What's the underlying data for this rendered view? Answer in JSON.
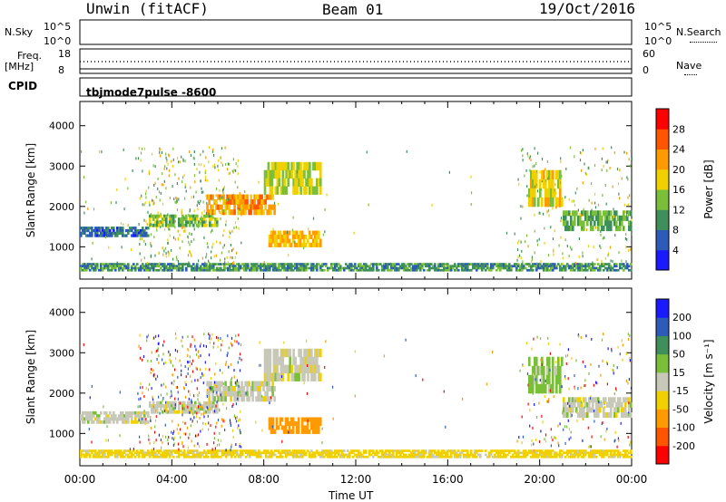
{
  "header": {
    "station": "Unwin (fitACF)",
    "beam": "Beam 01",
    "date": "19/Oct/2016"
  },
  "top_panels": {
    "nsky_label": "N.Sky",
    "nsky_ticks": [
      "10^5",
      "10^0"
    ],
    "nsearch_label": "N.Search",
    "freq_label_1": "Freq.",
    "freq_label_2": "[MHz]",
    "freq_ticks": [
      "18",
      "8"
    ],
    "nave_ticks": [
      "60",
      "0"
    ],
    "nave_label": "Nave",
    "cpid_label": "CPID",
    "cpid_value": "tbjmode7pulse  -8600"
  },
  "chart_data": [
    {
      "type": "heatmap",
      "name": "power",
      "ylabel": "Slant Range [km]",
      "yticks": [
        1000,
        2000,
        3000,
        4000
      ],
      "ylim": [
        200,
        4600
      ],
      "xlim": [
        0,
        24
      ],
      "colorbar": {
        "label": "Power [dB]",
        "ticks": [
          4,
          8,
          12,
          16,
          20,
          24,
          28
        ],
        "range": [
          0,
          32
        ],
        "colors": [
          "#1a1aff",
          "#2c5cb8",
          "#3f8f5a",
          "#7abf3a",
          "#f0d000",
          "#ff9a00",
          "#ff5500",
          "#ff0000"
        ]
      },
      "echo_bands": [
        {
          "t": [
            0.0,
            3.0
          ],
          "r": [
            1250,
            1500
          ],
          "level": 7
        },
        {
          "t": [
            3.0,
            6.0
          ],
          "r": [
            1500,
            1800
          ],
          "level": 14
        },
        {
          "t": [
            5.5,
            8.5
          ],
          "r": [
            1800,
            2300
          ],
          "level": 22
        },
        {
          "t": [
            8.0,
            10.5
          ],
          "r": [
            2300,
            3100
          ],
          "level": 16
        },
        {
          "t": [
            8.2,
            10.5
          ],
          "r": [
            1000,
            1400
          ],
          "level": 20
        },
        {
          "t": [
            19.5,
            21.0
          ],
          "r": [
            2000,
            2900
          ],
          "level": 18
        },
        {
          "t": [
            21.0,
            24.0
          ],
          "r": [
            1400,
            1900
          ],
          "level": 12
        },
        {
          "t": [
            0.0,
            24.0
          ],
          "r": [
            400,
            600
          ],
          "level": 10
        }
      ]
    },
    {
      "type": "heatmap",
      "name": "velocity",
      "ylabel": "Slant Range [km]",
      "yticks": [
        1000,
        2000,
        3000,
        4000
      ],
      "ylim": [
        200,
        4600
      ],
      "xlim": [
        0,
        24
      ],
      "colorbar": {
        "label": "Velocity [m s⁻¹]",
        "ticks": [
          "200",
          "100",
          "50",
          "15",
          "-15",
          "-50",
          "-100",
          "-200"
        ],
        "colors": [
          "#1a1aff",
          "#2c5cb8",
          "#3f8f5a",
          "#7abf3a",
          "#c8c8b8",
          "#f0d000",
          "#ff9a00",
          "#ff5500",
          "#ff0000"
        ]
      },
      "echo_bands": [
        {
          "t": [
            0.0,
            3.0
          ],
          "r": [
            1250,
            1550
          ],
          "level": 0
        },
        {
          "t": [
            3.0,
            6.0
          ],
          "r": [
            1500,
            1800
          ],
          "level": 0
        },
        {
          "t": [
            5.5,
            8.5
          ],
          "r": [
            1800,
            2300
          ],
          "level": 0
        },
        {
          "t": [
            8.0,
            10.5
          ],
          "r": [
            2300,
            3100
          ],
          "level": 0
        },
        {
          "t": [
            8.2,
            10.5
          ],
          "r": [
            1000,
            1400
          ],
          "level": -80
        },
        {
          "t": [
            19.5,
            21.0
          ],
          "r": [
            2000,
            2900
          ],
          "level": 30
        },
        {
          "t": [
            21.0,
            24.0
          ],
          "r": [
            1400,
            1900
          ],
          "level": 0
        },
        {
          "t": [
            0.0,
            24.0
          ],
          "r": [
            400,
            600
          ],
          "level": -30
        }
      ]
    }
  ],
  "xaxis": {
    "ticks": [
      "00:00",
      "04:00",
      "08:00",
      "12:00",
      "16:00",
      "20:00",
      "00:00"
    ],
    "label": "Time UT"
  }
}
